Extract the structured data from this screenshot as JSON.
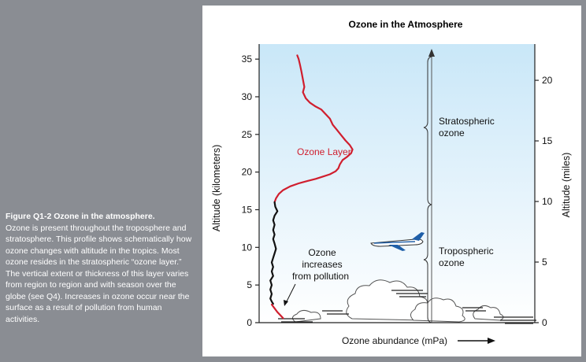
{
  "caption": {
    "title": "Figure Q1-2 Ozone in the atmosphere.",
    "body": "Ozone is present throughout the troposphere and stratosphere. This profile shows schematically how ozone changes with altitude in the tropics. Most ozone resides in the stratospheric “ozone layer.” The vertical extent or thickness of this layer varies from region to region and with season over the globe (see Q4). Increases in ozone occur near the surface as a result of pollution from human activities."
  },
  "colors": {
    "background": "#8a8d93",
    "sky_top": "#c9e7f8",
    "sky_bottom": "#ffffff",
    "ozone_stratosphere": "#d01e2e",
    "ozone_troposphere": "#111111",
    "ozone_surface": "#d01e2e"
  },
  "chart_data": {
    "type": "line",
    "title": "Ozone in the Atmosphere",
    "xlabel": "Ozone abundance (mPa)",
    "ylabel_left": "Altitude (kilometers)",
    "ylabel_right": "Altitude (miles)",
    "ylim_km": [
      0,
      37
    ],
    "y_ticks_km": [
      "0",
      "5",
      "10",
      "15",
      "20",
      "25",
      "30",
      "35"
    ],
    "y_ticks_miles": [
      "0",
      "5",
      "10",
      "15",
      "20"
    ],
    "grid": false,
    "series": [
      {
        "name": "Ozone Layer",
        "points": [
          [
            0.18,
            35.5
          ],
          [
            0.19,
            35
          ],
          [
            0.2,
            34.2
          ],
          [
            0.21,
            33.3
          ],
          [
            0.22,
            32.3
          ],
          [
            0.23,
            31.3
          ],
          [
            0.22,
            30.6
          ],
          [
            0.24,
            29.8
          ],
          [
            0.27,
            29.2
          ],
          [
            0.31,
            28.7
          ],
          [
            0.35,
            28.3
          ],
          [
            0.38,
            27.7
          ],
          [
            0.41,
            27.1
          ],
          [
            0.43,
            26.3
          ],
          [
            0.46,
            25.6
          ],
          [
            0.49,
            24.9
          ],
          [
            0.52,
            24.2
          ],
          [
            0.55,
            23.6
          ],
          [
            0.57,
            23
          ],
          [
            0.56,
            22.5
          ],
          [
            0.53,
            22
          ],
          [
            0.5,
            21.6
          ],
          [
            0.48,
            21
          ],
          [
            0.47,
            20.5
          ],
          [
            0.45,
            20.1
          ],
          [
            0.41,
            19.7
          ],
          [
            0.36,
            19.4
          ],
          [
            0.31,
            19.1
          ],
          [
            0.25,
            18.8
          ],
          [
            0.19,
            18.5
          ],
          [
            0.13,
            18.1
          ],
          [
            0.08,
            17.6
          ],
          [
            0.05,
            17.1
          ],
          [
            0.03,
            16.5
          ],
          [
            0.02,
            16
          ]
        ]
      },
      {
        "name": "Tropospheric ozone",
        "points": [
          [
            0.02,
            16
          ],
          [
            0.025,
            15.4
          ],
          [
            0.04,
            14.8
          ],
          [
            0.02,
            14.2
          ],
          [
            0.01,
            13.6
          ],
          [
            0.02,
            13
          ],
          [
            0.01,
            12.3
          ],
          [
            0.02,
            11.7
          ],
          [
            0.01,
            11.1
          ],
          [
            0.02,
            10.5
          ],
          [
            0.03,
            9.8
          ],
          [
            0.02,
            9.2
          ],
          [
            0.01,
            8.6
          ],
          [
            0.0,
            8
          ],
          [
            0.01,
            7.4
          ],
          [
            0.0,
            6.8
          ],
          [
            0.01,
            6.2
          ],
          [
            -0.01,
            5.6
          ],
          [
            0.0,
            5
          ],
          [
            -0.01,
            4.4
          ],
          [
            0.0,
            3.8
          ],
          [
            -0.01,
            3.2
          ],
          [
            0.0,
            2.8
          ],
          [
            0.01,
            2.5
          ]
        ]
      },
      {
        "name": "Surface pollution",
        "points": [
          [
            0.0,
            2.4
          ],
          [
            0.02,
            1.9
          ],
          [
            0.04,
            1.4
          ],
          [
            0.06,
            1.0
          ],
          [
            0.08,
            0.6
          ]
        ]
      }
    ],
    "annotations": {
      "ozone_layer": "Ozone Layer",
      "stratospheric": [
        "Stratospheric",
        "ozone"
      ],
      "tropospheric": [
        "Tropospheric",
        "ozone"
      ],
      "pollution": [
        "Ozone",
        "increases",
        "from pollution"
      ]
    }
  }
}
